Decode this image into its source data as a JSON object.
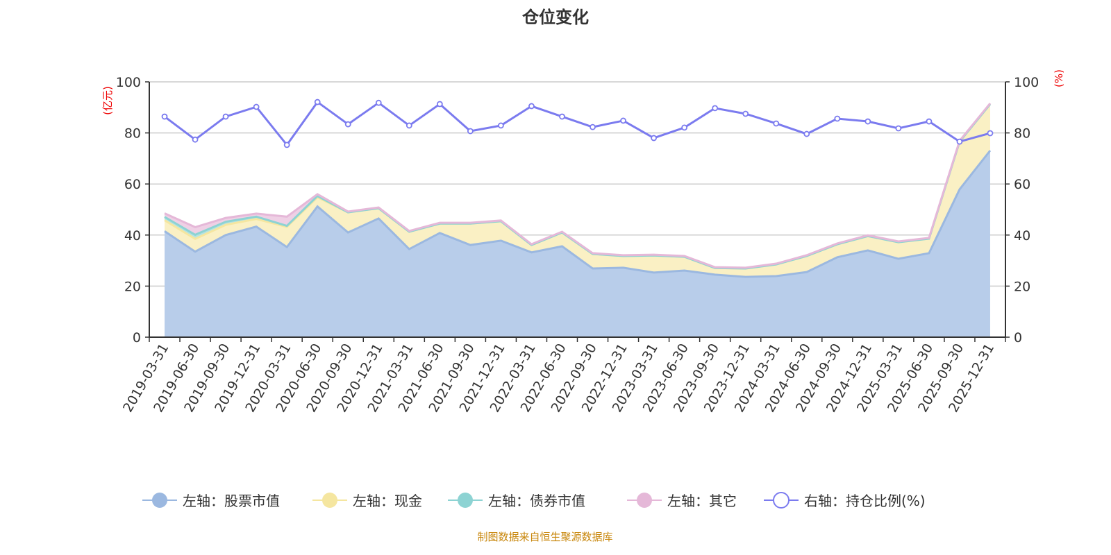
{
  "chart_data": {
    "type": "area",
    "title": "仓位变化",
    "left_axis_name": "(亿元)",
    "right_axis_name": "(%)",
    "ylim_left": [
      0,
      100
    ],
    "ylim_right": [
      0,
      100
    ],
    "yticks_left": [
      "0",
      "20",
      "40",
      "60",
      "80",
      "100"
    ],
    "yticks_right": [
      "0",
      "20",
      "40",
      "60",
      "80",
      "100"
    ],
    "grid": true,
    "legend_position": "bottom",
    "categories": [
      "2019-03-31",
      "2019-06-30",
      "2019-09-30",
      "2019-12-31",
      "2020-03-31",
      "2020-06-30",
      "2020-09-30",
      "2020-12-31",
      "2021-03-31",
      "2021-06-30",
      "2021-09-30",
      "2021-12-31",
      "2022-03-31",
      "2022-06-30",
      "2022-09-30",
      "2022-12-31",
      "2023-03-31",
      "2023-06-30",
      "2023-09-30",
      "2023-12-31",
      "2024-03-31",
      "2024-06-30",
      "2024-09-30",
      "2024-12-31",
      "2025-03-31",
      "2025-06-30",
      "2025-09-30",
      "2025-12-31"
    ],
    "series": [
      {
        "name": "左轴：股票市值",
        "axis": "left",
        "stacked": true,
        "color": "#9bb8e0",
        "fill": "#b8cdea",
        "values": [
          41.5,
          33.5,
          40.0,
          43.3,
          35.3,
          51.2,
          41.0,
          46.5,
          34.5,
          40.8,
          36.1,
          37.8,
          33.2,
          35.6,
          26.9,
          27.2,
          25.3,
          26.1,
          24.5,
          23.6,
          23.9,
          25.5,
          31.3,
          34.0,
          30.7,
          32.9,
          57.9,
          73.1
        ]
      },
      {
        "name": "左轴：现金",
        "axis": "left",
        "stacked": true,
        "color": "#f5e6a0",
        "fill": "#faf0c4",
        "values": [
          4.3,
          5.0,
          4.0,
          3.0,
          7.9,
          3.6,
          7.9,
          4.0,
          6.8,
          3.7,
          8.4,
          7.6,
          2.9,
          5.4,
          5.7,
          4.6,
          6.7,
          5.4,
          2.6,
          3.3,
          4.6,
          6.3,
          5.1,
          5.6,
          6.5,
          5.7,
          18.7,
          18.2
        ]
      },
      {
        "name": "左轴：债券市值",
        "axis": "left",
        "stacked": true,
        "color": "#8dd3d3",
        "fill": "#b4e3e3",
        "values": [
          1.3,
          1.6,
          1.2,
          0.9,
          0.4,
          0.5,
          0,
          0,
          0,
          0,
          0,
          0,
          0,
          0,
          0,
          0,
          0,
          0,
          0,
          0,
          0,
          0,
          0,
          0,
          0,
          0,
          0,
          0
        ]
      },
      {
        "name": "左轴：其它",
        "axis": "left",
        "stacked": true,
        "color": "#e5b8d8",
        "fill": "#efd0e5",
        "values": [
          1.4,
          3.0,
          1.5,
          1.2,
          3.6,
          0.7,
          0.3,
          0.3,
          0.3,
          0.3,
          0.3,
          0.3,
          0.3,
          0.3,
          0.3,
          0.3,
          0.3,
          0.3,
          0.3,
          0.3,
          0.3,
          0.3,
          0.3,
          0.3,
          0.3,
          0.3,
          0.3,
          0.3
        ]
      },
      {
        "name": "右轴：持仓比例(%)",
        "axis": "right",
        "stacked": false,
        "color": "#7b7bef",
        "values": [
          86.4,
          77.4,
          86.4,
          90.2,
          75.3,
          92.1,
          83.4,
          91.8,
          82.9,
          91.3,
          80.7,
          82.9,
          90.5,
          86.4,
          82.3,
          84.8,
          78.0,
          82.1,
          89.7,
          87.5,
          83.7,
          79.6,
          85.6,
          84.5,
          81.8,
          84.5,
          76.6,
          79.9
        ]
      }
    ]
  },
  "footer": "制图数据来自恒生聚源数据库"
}
